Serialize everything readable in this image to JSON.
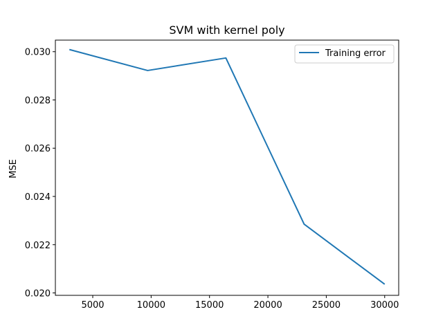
{
  "chart_data": {
    "type": "line",
    "title": "SVM with kernel poly",
    "xlabel": "",
    "ylabel": "MSE",
    "xlim": [
      1800,
      31200
    ],
    "ylim": [
      0.0199,
      0.03048
    ],
    "xticks": [
      5000,
      10000,
      15000,
      20000,
      25000,
      30000
    ],
    "yticks": [
      0.02,
      0.022,
      0.024,
      0.026,
      0.028,
      0.03
    ],
    "xtick_labels": [
      "5000",
      "10000",
      "15000",
      "20000",
      "25000",
      "30000"
    ],
    "ytick_labels": [
      "0.020",
      "0.022",
      "0.024",
      "0.026",
      "0.028",
      "0.030"
    ],
    "grid": false,
    "legend_position": "top-right",
    "series": [
      {
        "name": "Training error",
        "color": "#1f77b4",
        "x": [
          3000,
          9700,
          16400,
          23100,
          30000
        ],
        "y": [
          0.03009,
          0.02922,
          0.02974,
          0.02285,
          0.02036
        ]
      }
    ]
  }
}
